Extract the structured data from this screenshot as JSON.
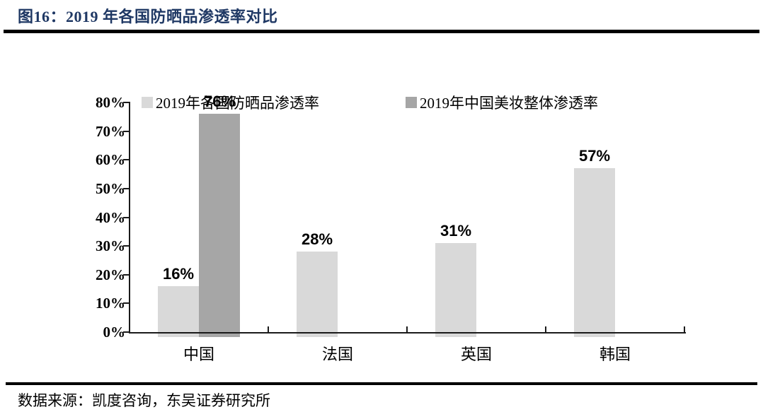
{
  "header": {
    "title": "图16：2019 年各国防晒品渗透率对比"
  },
  "footer": {
    "source": "数据来源：凯度咨询，东吴证券研究所"
  },
  "chart_data": {
    "type": "bar",
    "title": "2019 年各国防晒品渗透率对比",
    "categories": [
      "中国",
      "法国",
      "英国",
      "韩国"
    ],
    "series": [
      {
        "name": "2019年各国防晒品渗透率",
        "color": "#D9D9D9",
        "values": [
          16,
          28,
          31,
          57
        ]
      },
      {
        "name": "2019年中国美妆整体渗透率",
        "color": "#A6A6A6",
        "values": [
          76,
          null,
          null,
          null
        ]
      }
    ],
    "value_label_format": "{v}%",
    "value_labels": [
      "16%",
      "76%",
      "28%",
      "31%",
      "57%"
    ],
    "ylim": [
      0,
      80
    ],
    "ytick_values": [
      0,
      10,
      20,
      30,
      40,
      50,
      60,
      70,
      80
    ],
    "ytick_labels": [
      "0%",
      "10%",
      "20%",
      "30%",
      "40%",
      "50%",
      "60%",
      "70%",
      "80%"
    ],
    "legend_position": "top",
    "grid": false
  },
  "colors": {
    "title": "#1F3864",
    "axis": "#1A1A1A",
    "bar_light": "#D9D9D9",
    "bar_dark": "#A6A6A6",
    "rule": "#000000"
  }
}
